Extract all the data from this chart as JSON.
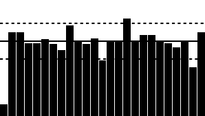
{
  "n": 25,
  "bar_values": [
    10,
    72,
    72,
    63,
    63,
    66,
    62,
    57,
    78,
    64,
    62,
    67,
    48,
    64,
    64,
    84,
    64,
    70,
    70,
    65,
    63,
    59,
    64,
    42,
    72
  ],
  "mean": 64.5,
  "upper_limit": 80.0,
  "lower_limit": 49.0,
  "ymin": 0,
  "ymax": 100,
  "bar_color": "#000000",
  "background_color": "#ffffff",
  "mean_line_color": "#000000",
  "limit_line_color": "#000000",
  "bar_width": 0.92
}
